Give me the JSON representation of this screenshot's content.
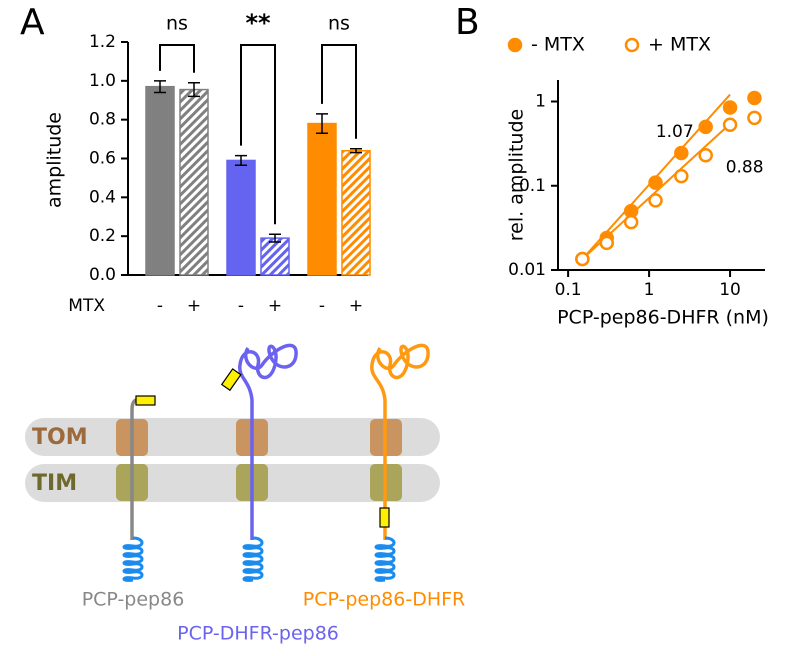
{
  "panel_labels": [
    "A",
    "B"
  ],
  "chart_data": [
    {
      "type": "bar",
      "ylabel": "amplitude",
      "xlabel": "MTX",
      "categories": [
        "-",
        "+",
        "-",
        "+",
        "-",
        "+"
      ],
      "values": [
        0.97,
        0.955,
        0.59,
        0.19,
        0.78,
        0.64
      ],
      "errors": [
        0.03,
        0.035,
        0.025,
        0.02,
        0.05,
        0.01
      ],
      "colors": [
        "#808080",
        "#808080",
        "#6464f0",
        "#6464f0",
        "#ff8c00",
        "#ff8c00"
      ],
      "hatched": [
        false,
        true,
        false,
        true,
        false,
        true
      ],
      "significance": [
        "ns",
        "**",
        "ns"
      ],
      "ylim": [
        0,
        1.2
      ],
      "yticks": [
        {
          "value": 0,
          "label": "0.0"
        },
        0.2,
        0.4,
        0.6,
        0.8,
        {
          "value": 1,
          "label": "1.0"
        },
        1.2
      ]
    },
    {
      "type": "scatter",
      "xlabel": "PCP-pep86-DHFR (nM)",
      "ylabel": "rel. amplitude",
      "log_x": true,
      "log_y": true,
      "xlim": [
        0.075,
        27
      ],
      "ylim": [
        0.01,
        1.8
      ],
      "xticks": [
        0.1,
        1,
        10
      ],
      "yticks": [
        0.01,
        0.1,
        1
      ],
      "legend": "top",
      "series": [
        {
          "name": "- MTX",
          "color": "#ff8c00",
          "filled": true,
          "slope": 1.07,
          "x": [
            0.15,
            0.3,
            0.6,
            1.2,
            2.5,
            5,
            10,
            20
          ],
          "values": [
            0.0135,
            0.024,
            0.05,
            0.109,
            0.245,
            0.5,
            0.85,
            1.1
          ]
        },
        {
          "name": "+ MTX",
          "color": "#ff8c00",
          "filled": false,
          "slope": 0.88,
          "x": [
            0.15,
            0.3,
            0.6,
            1.2,
            2.5,
            5,
            10,
            20
          ],
          "values": [
            0.0135,
            0.021,
            0.037,
            0.067,
            0.13,
            0.23,
            0.53,
            0.64
          ]
        }
      ]
    }
  ],
  "diagram": {
    "membranes": [
      "TOM",
      "TIM"
    ],
    "constructs": [
      "PCP-pep86",
      "PCP-DHFR-pep86",
      "PCP-pep86-DHFR"
    ]
  }
}
